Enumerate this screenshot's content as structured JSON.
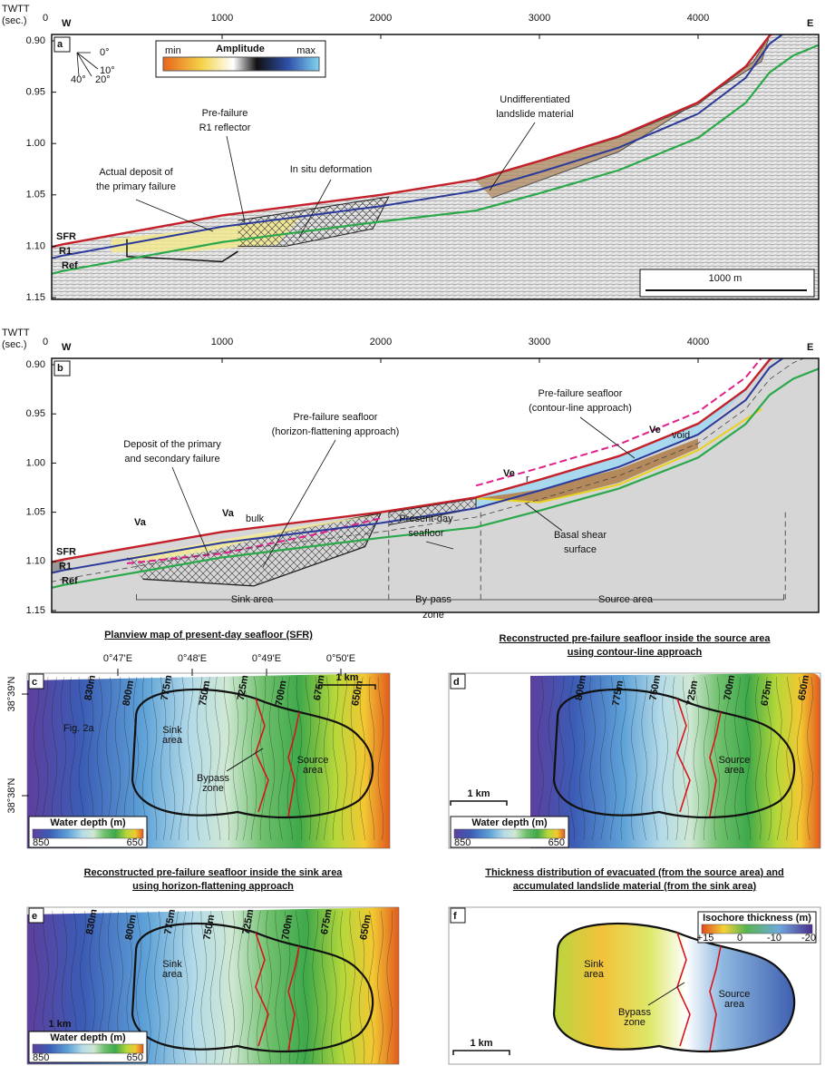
{
  "panel_a": {
    "label": "a",
    "axis_title": [
      "TWTT",
      "(sec.)"
    ],
    "x_ticks": [
      "0",
      "1000",
      "2000",
      "3000",
      "4000"
    ],
    "y_ticks": [
      "0.90",
      "0.95",
      "1.00",
      "1.05",
      "1.10",
      "1.15"
    ],
    "west": "W",
    "east": "E",
    "angles": [
      "0°",
      "10°",
      "20°",
      "40°"
    ],
    "legend": {
      "title": "Amplitude",
      "min": "min",
      "max": "max"
    },
    "annotations": {
      "undifferentiated": [
        "Undifferentiated",
        "landslide material"
      ],
      "r1": [
        "Pre-failure",
        "R1 reflector"
      ],
      "in_situ": "In situ deformation",
      "deposit": [
        "Actual deposit of",
        "the primary failure"
      ]
    },
    "horizons": [
      "SFR",
      "R1",
      "Ref"
    ],
    "scale_bar": "1000 m"
  },
  "panel_b": {
    "label": "b",
    "axis_title": [
      "TWTT",
      "(sec.)"
    ],
    "x_ticks": [
      "0",
      "1000",
      "2000",
      "3000",
      "4000"
    ],
    "y_ticks": [
      "0.90",
      "0.95",
      "1.00",
      "1.05",
      "1.10",
      "1.15"
    ],
    "west": "W",
    "east": "E",
    "annotations": {
      "contour": [
        "Pre-failure seafloor",
        "(contour-line approach)"
      ],
      "flattening": [
        "Pre-failure seafloor",
        "(horizon-flattening approach)"
      ],
      "deposit": [
        "Deposit of the primary",
        "and secondary failure"
      ],
      "present": [
        "Present-day",
        "seafloor"
      ],
      "basal": [
        "Basal shear",
        "surface"
      ]
    },
    "volumes": {
      "va": "Va",
      "va_bulk": [
        "Va",
        "bulk"
      ],
      "ve_r": [
        "Ve",
        "r"
      ],
      "ve_void": [
        "Ve",
        "void"
      ]
    },
    "horizons": [
      "SFR",
      "R1",
      "Ref"
    ],
    "areas": {
      "sink": "Sink area",
      "bypass": [
        "By-pass",
        "zone"
      ],
      "source": "Source area"
    }
  },
  "panel_c": {
    "label": "c",
    "title": [
      "Planview map of present-day seafloor (SFR)"
    ],
    "lon_ticks": [
      "0°47'E",
      "0°48'E",
      "0°49'E",
      "0°50'E"
    ],
    "lat_ticks": [
      "38°39'N",
      "38°38'N"
    ],
    "scale_bar": "1 km",
    "colorbar": {
      "title": "Water depth (m)",
      "min": "850",
      "max": "650"
    },
    "labels": {
      "sink": [
        "Sink",
        "area"
      ],
      "source": [
        "Source",
        "area"
      ],
      "bypass": [
        "Bypass",
        "zone"
      ],
      "figref": "Fig. 2a"
    },
    "contours": [
      "830m",
      "800m",
      "775m",
      "750m",
      "725m",
      "700m",
      "675m",
      "650m"
    ]
  },
  "panel_d": {
    "label": "d",
    "title": [
      "Reconstructed pre-failure seafloor inside the source area",
      "using contour-line approach"
    ],
    "scale_bar": "1 km",
    "colorbar": {
      "title": "Water depth (m)",
      "min": "850",
      "max": "650"
    },
    "labels": {
      "source": [
        "Source",
        "area"
      ]
    },
    "contours": [
      "800m",
      "775m",
      "750m",
      "725m",
      "700m",
      "675m",
      "650m"
    ]
  },
  "panel_e": {
    "label": "e",
    "title": [
      "Reconstructed pre-failure seafloor inside the sink area",
      "using horizon-flattening approach"
    ],
    "scale_bar": "1 km",
    "colorbar": {
      "title": "Water depth (m)",
      "min": "850",
      "max": "650"
    },
    "labels": {
      "sink": [
        "Sink",
        "area"
      ]
    },
    "contours": [
      "830m",
      "800m",
      "775m",
      "750m",
      "725m",
      "700m",
      "675m",
      "650m"
    ]
  },
  "panel_f": {
    "label": "f",
    "title": [
      "Thickness distribution of evacuated (from the source area) and",
      "accumulated landslide material (from the sink area)"
    ],
    "scale_bar": "1 km",
    "colorbar": {
      "title": "Isochore thickness (m)",
      "ticks": [
        "+15",
        "0",
        "-10",
        "-20"
      ]
    },
    "labels": {
      "sink": [
        "Sink",
        "area"
      ],
      "source": [
        "Source",
        "area"
      ],
      "bypass": [
        "Bypass",
        "zone"
      ]
    }
  }
}
